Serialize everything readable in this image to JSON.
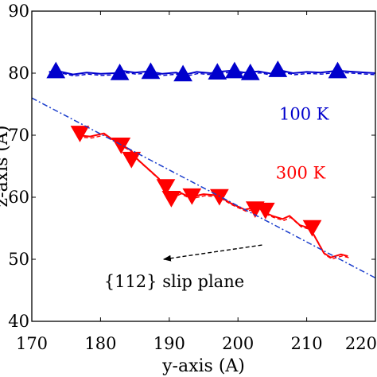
{
  "chart_data": {
    "type": "line",
    "title": "",
    "xlabel": "y-axis (A)",
    "ylabel": "z-axis (A)",
    "xlim": [
      170,
      220
    ],
    "ylim": [
      40,
      90
    ],
    "xticks": [
      170,
      180,
      190,
      200,
      210,
      220
    ],
    "yticks": [
      40,
      50,
      60,
      70,
      80,
      90
    ],
    "grid": false,
    "series": [
      {
        "name": "100 K",
        "color": "#0000cc",
        "marker": "triangle-up",
        "x": [
          172.5,
          174,
          176,
          178,
          180,
          182,
          183,
          185,
          187,
          189,
          191,
          192,
          194,
          196,
          197,
          199,
          201,
          203,
          205,
          206,
          208,
          210,
          212,
          214.5,
          217,
          220
        ],
        "y": [
          80.2,
          80.3,
          79.8,
          80.1,
          79.9,
          80.0,
          80.4,
          80.1,
          80.3,
          79.9,
          80.1,
          79.7,
          80.2,
          80.0,
          80.2,
          80.4,
          80.1,
          80.3,
          79.9,
          80.5,
          80.0,
          80.2,
          80.1,
          80.4,
          80.2,
          80.0
        ],
        "markers_x": [
          173.5,
          182.8,
          187.3,
          192.0,
          197.0,
          199.5,
          201.8,
          205.8,
          214.5
        ],
        "markers_y": [
          80.3,
          80.0,
          80.2,
          79.8,
          80.1,
          80.3,
          80.0,
          80.5,
          80.3
        ]
      },
      {
        "name": "300 K",
        "color": "#ff0000",
        "marker": "triangle-down",
        "x": [
          176.5,
          178.5,
          180.5,
          181.5,
          183,
          184.5,
          185,
          186,
          187.5,
          188.5,
          189.5,
          190.5,
          191.5,
          193,
          195,
          197,
          199,
          201,
          203,
          204,
          205,
          206.5,
          207.5,
          209,
          210.5,
          211.5,
          212.5,
          213.5,
          215,
          216
        ],
        "y": [
          70.0,
          69.8,
          70.3,
          69.5,
          68.5,
          67.5,
          66.5,
          65.5,
          64.0,
          63.0,
          61.0,
          60.2,
          60.8,
          60.0,
          60.5,
          60.3,
          59.0,
          58.0,
          58.5,
          57.5,
          57.0,
          56.5,
          57.0,
          55.5,
          55.0,
          53.0,
          51.0,
          50.3,
          50.8,
          50.5
        ],
        "markers_x": [
          177,
          183,
          184.5,
          189.5,
          190.3,
          193.3,
          197.3,
          202.5,
          204,
          210.8
        ],
        "markers_y": [
          70.4,
          68.5,
          66.2,
          61.8,
          59.9,
          60.3,
          60.2,
          58.2,
          58.0,
          55.2
        ]
      },
      {
        "name": "{112} slip plane",
        "color": "#1a3dcc",
        "style": "dash-dot",
        "x": [
          170,
          220
        ],
        "y": [
          76.0,
          47.0
        ]
      }
    ],
    "annotations": [
      {
        "text": "100 K",
        "color": "#0000cc",
        "x": 206.0,
        "y": 72.5
      },
      {
        "text": "300 K",
        "color": "#ff0000",
        "x": 205.5,
        "y": 63.0
      },
      {
        "text": "{112} slip plane",
        "color": "#000000",
        "x": 180.5,
        "y": 45.5,
        "arrow_from": [
          203.5,
          52.3
        ],
        "arrow_to": [
          189.2,
          50.0
        ]
      }
    ]
  }
}
